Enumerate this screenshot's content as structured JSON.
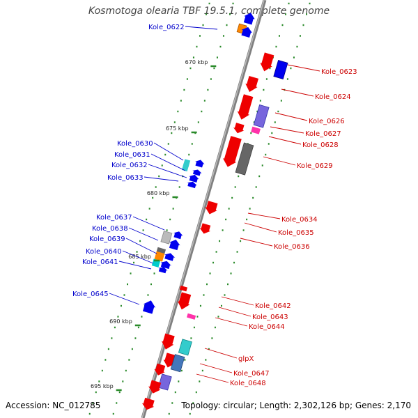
{
  "title": "Kosmotoga olearia TBF 19.5.1, complete genome",
  "accession": "Accession: NC_012785",
  "topology": "Topology: circular; Length: 2,302,126 bp; Genes: 2,170",
  "colors": {
    "left_label": "#0000cc",
    "right_label": "#cc0000",
    "backbone": "#808080",
    "tick": "#2a8a2a"
  },
  "scale_ticks": [
    "670 kbp",
    "675 kbp",
    "680 kbp",
    "685 kbp",
    "690 kbp",
    "695 kbp"
  ],
  "left_gene_labels": [
    "Kole_0622",
    "Kole_0630",
    "Kole_0631",
    "Kole_0632",
    "Kole_0633",
    "Kole_0637",
    "Kole_0638",
    "Kole_0639",
    "Kole_0640",
    "Kole_0641",
    "Kole_0645"
  ],
  "right_gene_labels": [
    "Kole_0623",
    "Kole_0624",
    "Kole_0626",
    "Kole_0627",
    "Kole_0628",
    "Kole_0629",
    "Kole_0634",
    "Kole_0635",
    "Kole_0636",
    "Kole_0642",
    "Kole_0643",
    "Kole_0644",
    "glpX",
    "Kole_0647",
    "Kole_0648"
  ]
}
